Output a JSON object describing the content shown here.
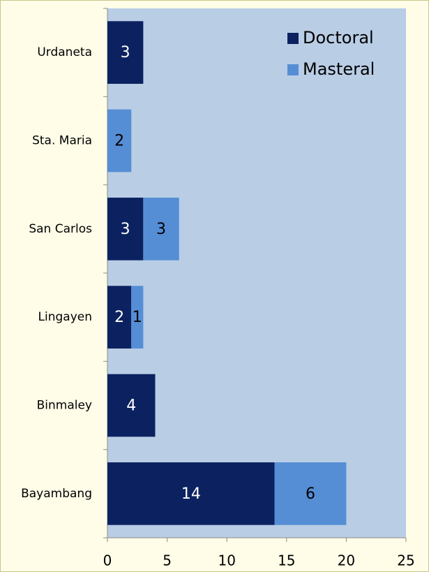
{
  "chart_data": {
    "type": "stacked_barh",
    "categories": [
      "Urdaneta",
      "Sta. Maria",
      "San Carlos",
      "Lingayen",
      "Binmaley",
      "Bayambang"
    ],
    "series": [
      {
        "name": "Doctoral",
        "color": "#0c2260",
        "values": [
          3,
          0,
          3,
          2,
          4,
          14
        ]
      },
      {
        "name": "Masteral",
        "color": "#558ed5",
        "values": [
          0,
          2,
          3,
          1,
          0,
          6
        ]
      }
    ],
    "xlim": [
      0,
      25
    ],
    "xticks": [
      0,
      5,
      10,
      15,
      20,
      25
    ],
    "legend": "upper right"
  }
}
